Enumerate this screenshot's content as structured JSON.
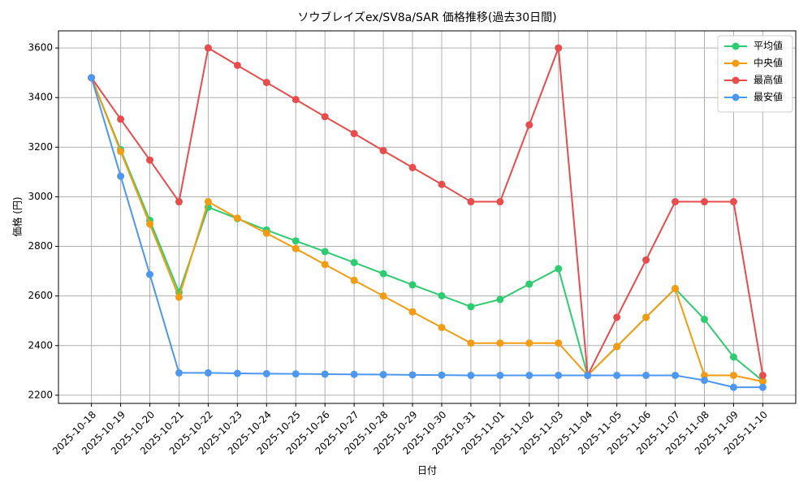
{
  "chart_data": {
    "type": "line",
    "title": "ソウブレイズex/SV8a/SAR 価格推移(過去30日間)",
    "x_label": "日付",
    "y_label": "価格 (円)",
    "categories": [
      "2025-10-18",
      "2025-10-19",
      "2025-10-20",
      "2025-10-21",
      "2025-10-22",
      "2025-10-23",
      "2025-10-24",
      "2025-10-25",
      "2025-10-26",
      "2025-10-27",
      "2025-10-28",
      "2025-10-29",
      "2025-10-30",
      "2025-10-31",
      "2025-11-01",
      "2025-11-02",
      "2025-11-03",
      "2025-11-04",
      "2025-11-05",
      "2025-11-06",
      "2025-11-07",
      "2025-11-08",
      "2025-11-09",
      "2025-11-10"
    ],
    "series": [
      {
        "name": "平均値",
        "color": "#2ecc71",
        "values": [
          3480,
          3190,
          2905,
          2615,
          2958,
          2912,
          2866,
          2822,
          2779,
          2735,
          2690,
          2645,
          2601,
          2557,
          2586,
          2648,
          2710,
          2280,
          2396,
          2514,
          2630,
          2506,
          2354,
          2258
        ]
      },
      {
        "name": "中央値",
        "color": "#f39c12",
        "values": [
          3480,
          3183,
          2890,
          2595,
          2980,
          2914,
          2853,
          2791,
          2727,
          2663,
          2600,
          2536,
          2473,
          2410,
          2410,
          2410,
          2410,
          2280,
          2396,
          2514,
          2630,
          2280,
          2280,
          2255
        ]
      },
      {
        "name": "最高値",
        "color": "#e84c4c",
        "values": [
          3480,
          3313,
          3148,
          2980,
          3600,
          3530,
          3461,
          3392,
          3323,
          3255,
          3186,
          3118,
          3050,
          2980,
          2980,
          3290,
          3600,
          2280,
          2514,
          2745,
          2980,
          2980,
          2980,
          2280
        ]
      },
      {
        "name": "最安値",
        "color": "#4e97f0",
        "values": [
          3480,
          3083,
          2687,
          2290,
          2290,
          2288,
          2287,
          2286,
          2285,
          2284,
          2283,
          2282,
          2281,
          2280,
          2280,
          2280,
          2280,
          2280,
          2280,
          2280,
          2280,
          2260,
          2232,
          2232
        ]
      }
    ],
    "ylim": [
      2167,
      3669
    ],
    "yticks": [
      2200,
      2400,
      2600,
      2800,
      3000,
      3200,
      3400,
      3600
    ],
    "grid": true,
    "legend": "upper right"
  }
}
